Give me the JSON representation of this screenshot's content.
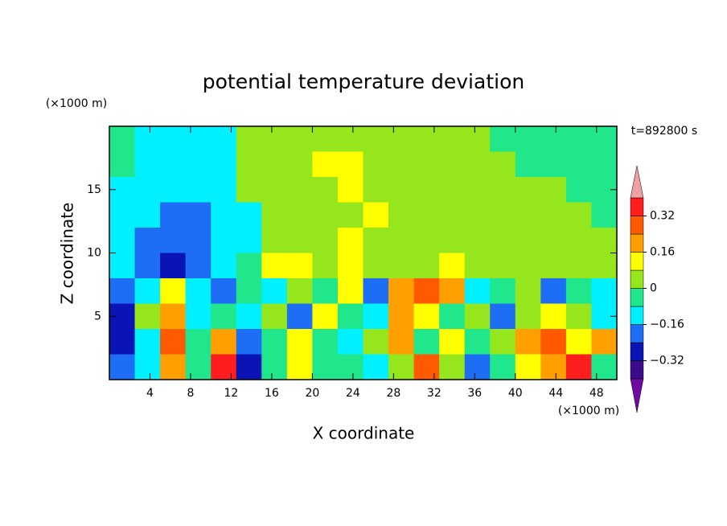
{
  "chart_data": {
    "type": "contour",
    "title": "potential temperature deviation",
    "subtitle": "t=892800 s",
    "x_label": "X coordinate",
    "y_label": "Z coordinate",
    "x_unit": "(×1000 m)",
    "y_unit": "(×1000 m)",
    "xlim": [
      0,
      50
    ],
    "ylim": [
      0,
      20
    ],
    "xticks": [
      4,
      8,
      12,
      16,
      20,
      24,
      28,
      32,
      36,
      40,
      44,
      48
    ],
    "yticks": [
      5,
      10,
      15
    ],
    "x": [
      1.25,
      3.75,
      6.25,
      8.75,
      11.25,
      13.75,
      16.25,
      18.75,
      21.25,
      23.75,
      26.25,
      28.75,
      31.25,
      33.75,
      36.25,
      38.75,
      41.25,
      43.75,
      46.25,
      48.75
    ],
    "y": [
      19,
      17,
      15,
      13,
      11,
      9,
      7,
      5,
      3,
      1
    ],
    "values": [
      [
        -0.04,
        -0.12,
        -0.12,
        -0.12,
        -0.12,
        0.04,
        0.04,
        0.04,
        0.04,
        0.04,
        0.04,
        0.04,
        0.04,
        0.04,
        0.04,
        -0.04,
        -0.04,
        -0.04,
        -0.04,
        -0.04
      ],
      [
        -0.04,
        -0.12,
        -0.12,
        -0.12,
        -0.12,
        0.04,
        0.04,
        0.04,
        0.12,
        0.12,
        0.04,
        0.04,
        0.04,
        0.04,
        0.04,
        0.04,
        -0.04,
        -0.04,
        -0.04,
        -0.04
      ],
      [
        -0.12,
        -0.12,
        -0.12,
        -0.12,
        -0.12,
        0.04,
        0.04,
        0.04,
        0.04,
        0.12,
        0.04,
        0.04,
        0.04,
        0.04,
        0.04,
        0.04,
        0.04,
        0.04,
        -0.04,
        -0.04
      ],
      [
        -0.12,
        -0.12,
        -0.2,
        -0.2,
        -0.12,
        -0.12,
        0.04,
        0.04,
        0.04,
        0.04,
        0.12,
        0.04,
        0.04,
        0.04,
        0.04,
        0.04,
        0.04,
        0.04,
        0.04,
        -0.04
      ],
      [
        -0.12,
        -0.2,
        -0.2,
        -0.2,
        -0.12,
        -0.12,
        0.04,
        0.04,
        0.04,
        0.12,
        0.04,
        0.04,
        0.04,
        0.04,
        0.04,
        0.04,
        0.04,
        0.04,
        0.04,
        0.04
      ],
      [
        -0.12,
        -0.2,
        -0.28,
        -0.2,
        -0.12,
        -0.04,
        0.12,
        0.12,
        0.04,
        0.12,
        0.04,
        0.04,
        0.04,
        0.12,
        0.04,
        0.04,
        0.04,
        0.04,
        0.04,
        0.04
      ],
      [
        -0.2,
        -0.12,
        0.12,
        -0.12,
        -0.2,
        -0.04,
        -0.12,
        0.04,
        -0.04,
        0.12,
        -0.2,
        0.2,
        0.28,
        0.2,
        -0.12,
        -0.04,
        0.04,
        -0.2,
        -0.04,
        -0.12
      ],
      [
        -0.28,
        0.04,
        0.2,
        -0.12,
        -0.04,
        -0.12,
        0.04,
        -0.2,
        0.12,
        -0.04,
        -0.12,
        0.2,
        0.12,
        -0.04,
        0.04,
        -0.2,
        0.04,
        0.12,
        0.04,
        -0.12
      ],
      [
        -0.28,
        -0.12,
        0.28,
        -0.04,
        0.2,
        -0.2,
        -0.04,
        0.12,
        -0.04,
        -0.12,
        0.04,
        0.2,
        -0.04,
        0.12,
        -0.04,
        0.04,
        0.2,
        0.28,
        0.12,
        0.2
      ],
      [
        -0.2,
        -0.12,
        0.2,
        -0.04,
        0.36,
        -0.28,
        -0.04,
        0.12,
        -0.04,
        -0.04,
        -0.12,
        0.04,
        0.28,
        0.04,
        -0.2,
        -0.04,
        0.12,
        0.2,
        0.36,
        -0.04
      ]
    ],
    "levels": [
      -0.4,
      -0.32,
      -0.24,
      -0.16,
      -0.08,
      0,
      0.08,
      0.16,
      0.24,
      0.32,
      0.4
    ],
    "colors": [
      "#6e0aa0",
      "#3c0a8c",
      "#0a14b4",
      "#1e6ef5",
      "#00f0ff",
      "#20e68c",
      "#96e61e",
      "#ffff00",
      "#ffa000",
      "#ff5a00",
      "#ff1e1e",
      "#f0a0a0"
    ],
    "cbar_ticks": [
      {
        "value": -0.32,
        "label": "−0.32"
      },
      {
        "value": -0.16,
        "label": "−0.16"
      },
      0,
      0.16,
      0.32
    ]
  }
}
